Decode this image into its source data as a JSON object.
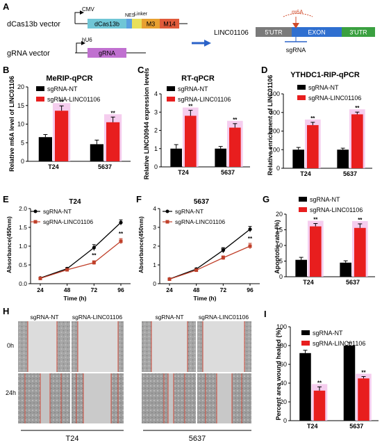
{
  "panel_letters": [
    "A",
    "B",
    "C",
    "D",
    "E",
    "F",
    "G",
    "H",
    "I"
  ],
  "panel_a": {
    "dcas13b_vector_label": "dCas13b vector",
    "cmv_label": "CMV",
    "dcas13b_box": "dCas13b",
    "nes_label": "NES",
    "linker_label": "Linker",
    "m3_box": "M3",
    "m14_box": "M14",
    "grna_vector_label": "gRNA vector",
    "hu6_label": "hU6",
    "grna_box": "gRNA",
    "gene_label": "LINC01106",
    "utr5": "5'UTR",
    "exon": "EXON",
    "utr3": "3'UTR",
    "m6a_mark": "m6A",
    "sgrna_label": "sgRNA",
    "colors": {
      "dcas13b": "#6fc6d6",
      "nes": "#5aa0e0",
      "linker": "#e8e05a",
      "m3": "#e8a030",
      "m14": "#e05a3a",
      "grna": "#c070d0",
      "utr5": "#7a7a7a",
      "exon": "#2f6fd0",
      "utr3": "#3aa040",
      "arrow": "#2a62c8"
    }
  },
  "legend": {
    "nt": "sgRNA-NT",
    "ko": "sgRNA-LINC01106"
  },
  "colors": {
    "nt": "#000000",
    "ko": "#e81e1e",
    "highlight": "#f2c0ea",
    "line_ko": "#c0402a"
  },
  "sig": "**",
  "bar_panels": [
    {
      "letter": "B",
      "title": "MeRIP-qPCR",
      "ylabel": "Relative m6A level of LINC01106",
      "categories": [
        "T24",
        "5637"
      ],
      "nt": [
        6.5,
        4.6
      ],
      "ko": [
        13.6,
        10.5
      ],
      "nt_err": [
        0.7,
        1.1
      ],
      "ko_err": [
        1.3,
        1.4
      ],
      "ylim": [
        0,
        20
      ],
      "yticks": [
        "0",
        "5",
        "10",
        "15",
        "20"
      ]
    },
    {
      "letter": "C",
      "title": "RT-qPCR",
      "ylabel": "Relative LINC00944  expression levels",
      "categories": [
        "T24",
        "5637"
      ],
      "nt": [
        1.0,
        1.0
      ],
      "ko": [
        2.8,
        2.15
      ],
      "nt_err": [
        0.22,
        0.12
      ],
      "ko_err": [
        0.3,
        0.22
      ],
      "ylim": [
        0,
        4
      ],
      "yticks": [
        "0",
        "1",
        "2",
        "3",
        "4"
      ]
    },
    {
      "letter": "D",
      "title": "YTHDC1-RIP-qPCR",
      "ylabel": "Relative enrichment of LINC01106",
      "categories": [
        "T24",
        "5637"
      ],
      "nt": [
        100,
        100
      ],
      "ko": [
        232,
        290
      ],
      "nt_err": [
        12,
        8
      ],
      "ko_err": [
        15,
        12
      ],
      "ylim": [
        0,
        400
      ],
      "yticks": [
        "0",
        "100",
        "200",
        "300",
        "400"
      ]
    },
    {
      "letter": "G",
      "title": "",
      "ylabel": "Apoptotic rate (%)",
      "categories": [
        "T24",
        "5637"
      ],
      "nt": [
        5.4,
        4.5
      ],
      "ko": [
        16.1,
        15.6
      ],
      "nt_err": [
        0.8,
        0.6
      ],
      "ko_err": [
        0.9,
        1.3
      ],
      "ylim": [
        0,
        20
      ],
      "yticks": [
        "0",
        "5",
        "10",
        "15",
        "20"
      ]
    },
    {
      "letter": "I",
      "title": "",
      "ylabel": "Percent area wound healed (%)",
      "categories": [
        "T24",
        "5637"
      ],
      "nt": [
        72,
        80
      ],
      "ko": [
        32,
        45
      ],
      "nt_err": [
        3,
        3
      ],
      "ko_err": [
        4,
        2
      ],
      "ylim": [
        0,
        100
      ],
      "yticks": [
        "0",
        "20",
        "40",
        "60",
        "80",
        "100"
      ]
    }
  ],
  "line_panels": [
    {
      "letter": "E",
      "title": "T24",
      "ylabel": "Absorbance(450nm)",
      "xlabel": "Time (h)",
      "x": [
        24,
        48,
        72,
        96
      ],
      "nt": [
        0.15,
        0.4,
        0.96,
        1.63
      ],
      "ko": [
        0.14,
        0.37,
        0.56,
        1.13
      ],
      "nt_err": [
        0.02,
        0.03,
        0.08,
        0.07
      ],
      "ko_err": [
        0.02,
        0.03,
        0.05,
        0.07
      ],
      "sig_at": [
        72,
        96
      ],
      "ylim": [
        0,
        2.0
      ],
      "yticks": [
        "0.0",
        "0.5",
        "1.0",
        "1.5",
        "2.0"
      ]
    },
    {
      "letter": "F",
      "title": "5637",
      "ylabel": "Absorbance(450nm)",
      "xlabel": "Time (h)",
      "x": [
        24,
        48,
        72,
        96
      ],
      "nt": [
        0.25,
        0.78,
        1.78,
        2.9
      ],
      "ko": [
        0.24,
        0.72,
        1.38,
        2.0
      ],
      "nt_err": [
        0.03,
        0.05,
        0.14,
        0.15
      ],
      "ko_err": [
        0.03,
        0.05,
        0.1,
        0.15
      ],
      "sig_at": [
        72,
        96
      ],
      "ylim": [
        0,
        4
      ],
      "yticks": [
        "0",
        "1",
        "2",
        "3",
        "4"
      ]
    }
  ],
  "wound": {
    "col_labels": [
      "sgRNA-NT",
      "sgRNA-LINC01106",
      "sgRNA-NT",
      "sgRNA-LINC01106"
    ],
    "row_labels": [
      "0h",
      "24h"
    ],
    "group_labels": [
      "T24",
      "5637"
    ]
  }
}
